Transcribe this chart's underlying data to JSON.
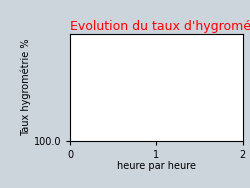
{
  "title": "Evolution du taux d'hygrométrie",
  "title_color": "#ff0000",
  "xlabel": "heure par heure",
  "ylabel": "Taux hygrométrie %",
  "background_color": "#ccd4dc",
  "plot_background_color": "#ffffff",
  "xlim": [
    0,
    2
  ],
  "xticks": [
    0,
    1,
    2
  ],
  "ytick_label": "100.0",
  "ytick_value": 0.0,
  "grid_color": "#aaaaaa",
  "title_fontsize": 9,
  "label_fontsize": 7,
  "tick_fontsize": 7
}
